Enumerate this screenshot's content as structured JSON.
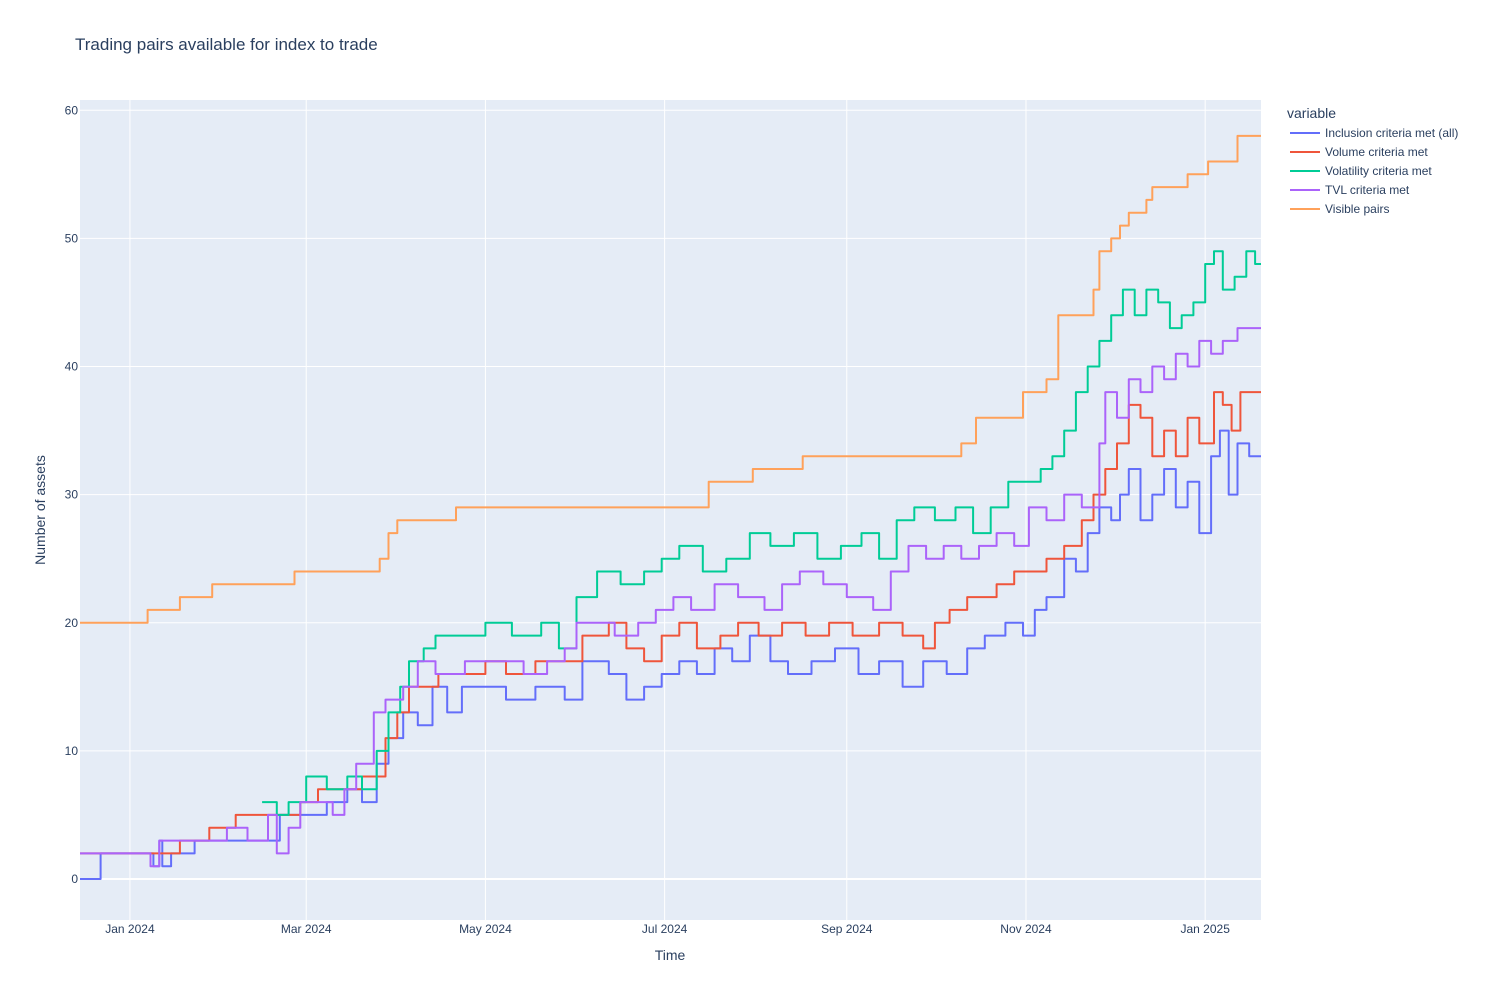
{
  "chart_data": {
    "type": "line",
    "line_shape": "step",
    "title": "Trading pairs available for index to trade",
    "xlabel": "Time",
    "ylabel": "Number of assets",
    "xlim": [
      "2023-12-15",
      "2025-01-20"
    ],
    "ylim": [
      -3.2,
      60.8
    ],
    "y_ticks": [
      0,
      10,
      20,
      30,
      40,
      50,
      60
    ],
    "x_ticks": [
      {
        "date": "2024-01-01",
        "label": "Jan 2024"
      },
      {
        "date": "2024-03-01",
        "label": "Mar 2024"
      },
      {
        "date": "2024-05-01",
        "label": "May 2024"
      },
      {
        "date": "2024-07-01",
        "label": "Jul 2024"
      },
      {
        "date": "2024-09-01",
        "label": "Sep 2024"
      },
      {
        "date": "2024-11-01",
        "label": "Nov 2024"
      },
      {
        "date": "2025-01-01",
        "label": "Jan 2025"
      }
    ],
    "grid": true,
    "legend": {
      "title": "variable",
      "position": "top-right-outside"
    },
    "series": [
      {
        "name": "Inclusion criteria met (all)",
        "color": "#636efa",
        "points": [
          [
            "2023-12-15",
            0
          ],
          [
            "2023-12-22",
            2
          ],
          [
            "2024-01-09",
            1
          ],
          [
            "2024-01-11",
            3
          ],
          [
            "2024-01-12",
            1
          ],
          [
            "2024-01-15",
            2
          ],
          [
            "2024-01-23",
            3
          ],
          [
            "2024-02-03",
            3
          ],
          [
            "2024-02-21",
            5
          ],
          [
            "2024-03-08",
            6
          ],
          [
            "2024-03-15",
            7
          ],
          [
            "2024-03-20",
            6
          ],
          [
            "2024-03-25",
            9
          ],
          [
            "2024-03-29",
            11
          ],
          [
            "2024-04-03",
            13
          ],
          [
            "2024-04-08",
            12
          ],
          [
            "2024-04-13",
            15
          ],
          [
            "2024-04-18",
            13
          ],
          [
            "2024-04-23",
            15
          ],
          [
            "2024-05-08",
            14
          ],
          [
            "2024-05-18",
            15
          ],
          [
            "2024-05-28",
            14
          ],
          [
            "2024-06-03",
            17
          ],
          [
            "2024-06-12",
            16
          ],
          [
            "2024-06-18",
            14
          ],
          [
            "2024-06-24",
            15
          ],
          [
            "2024-06-30",
            16
          ],
          [
            "2024-07-06",
            17
          ],
          [
            "2024-07-12",
            16
          ],
          [
            "2024-07-18",
            18
          ],
          [
            "2024-07-24",
            17
          ],
          [
            "2024-07-30",
            19
          ],
          [
            "2024-08-06",
            17
          ],
          [
            "2024-08-12",
            16
          ],
          [
            "2024-08-20",
            17
          ],
          [
            "2024-08-28",
            18
          ],
          [
            "2024-09-05",
            16
          ],
          [
            "2024-09-12",
            17
          ],
          [
            "2024-09-20",
            15
          ],
          [
            "2024-09-27",
            17
          ],
          [
            "2024-10-05",
            16
          ],
          [
            "2024-10-12",
            18
          ],
          [
            "2024-10-18",
            19
          ],
          [
            "2024-10-25",
            20
          ],
          [
            "2024-10-31",
            19
          ],
          [
            "2024-11-04",
            21
          ],
          [
            "2024-11-08",
            22
          ],
          [
            "2024-11-14",
            25
          ],
          [
            "2024-11-18",
            24
          ],
          [
            "2024-11-22",
            27
          ],
          [
            "2024-11-26",
            29
          ],
          [
            "2024-11-30",
            28
          ],
          [
            "2024-12-03",
            30
          ],
          [
            "2024-12-06",
            32
          ],
          [
            "2024-12-10",
            28
          ],
          [
            "2024-12-14",
            30
          ],
          [
            "2024-12-18",
            32
          ],
          [
            "2024-12-22",
            29
          ],
          [
            "2024-12-26",
            31
          ],
          [
            "2024-12-30",
            27
          ],
          [
            "2025-01-03",
            33
          ],
          [
            "2025-01-06",
            35
          ],
          [
            "2025-01-09",
            30
          ],
          [
            "2025-01-12",
            34
          ],
          [
            "2025-01-16",
            33
          ],
          [
            "2025-01-20",
            33
          ]
        ]
      },
      {
        "name": "Volume criteria met",
        "color": "#ef553b",
        "points": [
          [
            "2023-12-15",
            2
          ],
          [
            "2024-01-18",
            3
          ],
          [
            "2024-01-28",
            4
          ],
          [
            "2024-02-06",
            5
          ],
          [
            "2024-02-28",
            6
          ],
          [
            "2024-03-05",
            7
          ],
          [
            "2024-03-20",
            8
          ],
          [
            "2024-03-28",
            11
          ],
          [
            "2024-04-01",
            13
          ],
          [
            "2024-04-05",
            15
          ],
          [
            "2024-04-15",
            16
          ],
          [
            "2024-05-01",
            17
          ],
          [
            "2024-05-08",
            16
          ],
          [
            "2024-05-18",
            17
          ],
          [
            "2024-06-03",
            19
          ],
          [
            "2024-06-12",
            20
          ],
          [
            "2024-06-18",
            18
          ],
          [
            "2024-06-24",
            17
          ],
          [
            "2024-06-30",
            19
          ],
          [
            "2024-07-06",
            20
          ],
          [
            "2024-07-12",
            18
          ],
          [
            "2024-07-20",
            19
          ],
          [
            "2024-07-26",
            20
          ],
          [
            "2024-08-02",
            19
          ],
          [
            "2024-08-10",
            20
          ],
          [
            "2024-08-18",
            19
          ],
          [
            "2024-08-26",
            20
          ],
          [
            "2024-09-03",
            19
          ],
          [
            "2024-09-12",
            20
          ],
          [
            "2024-09-20",
            19
          ],
          [
            "2024-09-27",
            18
          ],
          [
            "2024-10-01",
            20
          ],
          [
            "2024-10-06",
            21
          ],
          [
            "2024-10-12",
            22
          ],
          [
            "2024-10-22",
            23
          ],
          [
            "2024-10-28",
            24
          ],
          [
            "2024-11-02",
            24
          ],
          [
            "2024-11-08",
            25
          ],
          [
            "2024-11-14",
            26
          ],
          [
            "2024-11-20",
            28
          ],
          [
            "2024-11-24",
            30
          ],
          [
            "2024-11-28",
            32
          ],
          [
            "2024-12-02",
            34
          ],
          [
            "2024-12-06",
            37
          ],
          [
            "2024-12-10",
            36
          ],
          [
            "2024-12-14",
            33
          ],
          [
            "2024-12-18",
            35
          ],
          [
            "2024-12-22",
            33
          ],
          [
            "2024-12-26",
            36
          ],
          [
            "2024-12-30",
            34
          ],
          [
            "2025-01-04",
            38
          ],
          [
            "2025-01-07",
            37
          ],
          [
            "2025-01-10",
            35
          ],
          [
            "2025-01-13",
            38
          ],
          [
            "2025-01-20",
            38
          ]
        ]
      },
      {
        "name": "Volatility criteria met",
        "color": "#00cc96",
        "points": [
          [
            "2024-02-15",
            6
          ],
          [
            "2024-02-20",
            5
          ],
          [
            "2024-02-24",
            6
          ],
          [
            "2024-03-01",
            8
          ],
          [
            "2024-03-08",
            7
          ],
          [
            "2024-03-15",
            8
          ],
          [
            "2024-03-20",
            7
          ],
          [
            "2024-03-25",
            10
          ],
          [
            "2024-03-29",
            13
          ],
          [
            "2024-04-02",
            15
          ],
          [
            "2024-04-05",
            17
          ],
          [
            "2024-04-10",
            18
          ],
          [
            "2024-04-14",
            19
          ],
          [
            "2024-04-28",
            19
          ],
          [
            "2024-05-01",
            20
          ],
          [
            "2024-05-10",
            19
          ],
          [
            "2024-05-20",
            20
          ],
          [
            "2024-05-26",
            18
          ],
          [
            "2024-06-01",
            22
          ],
          [
            "2024-06-08",
            24
          ],
          [
            "2024-06-16",
            23
          ],
          [
            "2024-06-24",
            24
          ],
          [
            "2024-06-30",
            25
          ],
          [
            "2024-07-06",
            26
          ],
          [
            "2024-07-14",
            24
          ],
          [
            "2024-07-22",
            25
          ],
          [
            "2024-07-30",
            27
          ],
          [
            "2024-08-06",
            26
          ],
          [
            "2024-08-14",
            27
          ],
          [
            "2024-08-22",
            25
          ],
          [
            "2024-08-30",
            26
          ],
          [
            "2024-09-06",
            27
          ],
          [
            "2024-09-12",
            25
          ],
          [
            "2024-09-18",
            28
          ],
          [
            "2024-09-24",
            29
          ],
          [
            "2024-10-01",
            28
          ],
          [
            "2024-10-08",
            29
          ],
          [
            "2024-10-14",
            27
          ],
          [
            "2024-10-20",
            29
          ],
          [
            "2024-10-26",
            31
          ],
          [
            "2024-11-01",
            31
          ],
          [
            "2024-11-06",
            32
          ],
          [
            "2024-11-10",
            33
          ],
          [
            "2024-11-14",
            35
          ],
          [
            "2024-11-18",
            38
          ],
          [
            "2024-11-22",
            40
          ],
          [
            "2024-11-26",
            42
          ],
          [
            "2024-11-30",
            44
          ],
          [
            "2024-12-04",
            46
          ],
          [
            "2024-12-08",
            44
          ],
          [
            "2024-12-12",
            46
          ],
          [
            "2024-12-16",
            45
          ],
          [
            "2024-12-20",
            43
          ],
          [
            "2024-12-24",
            44
          ],
          [
            "2024-12-28",
            45
          ],
          [
            "2025-01-01",
            48
          ],
          [
            "2025-01-04",
            49
          ],
          [
            "2025-01-07",
            46
          ],
          [
            "2025-01-11",
            47
          ],
          [
            "2025-01-15",
            49
          ],
          [
            "2025-01-18",
            48
          ],
          [
            "2025-01-20",
            48
          ]
        ]
      },
      {
        "name": "TVL criteria met",
        "color": "#ab63fa",
        "points": [
          [
            "2023-12-15",
            2
          ],
          [
            "2024-01-08",
            1
          ],
          [
            "2024-01-11",
            3
          ],
          [
            "2024-01-15",
            3
          ],
          [
            "2024-02-03",
            4
          ],
          [
            "2024-02-10",
            3
          ],
          [
            "2024-02-17",
            5
          ],
          [
            "2024-02-20",
            2
          ],
          [
            "2024-02-24",
            4
          ],
          [
            "2024-02-28",
            6
          ],
          [
            "2024-03-10",
            5
          ],
          [
            "2024-03-14",
            7
          ],
          [
            "2024-03-18",
            9
          ],
          [
            "2024-03-24",
            13
          ],
          [
            "2024-03-28",
            14
          ],
          [
            "2024-04-03",
            15
          ],
          [
            "2024-04-08",
            17
          ],
          [
            "2024-04-14",
            16
          ],
          [
            "2024-04-24",
            17
          ],
          [
            "2024-05-14",
            16
          ],
          [
            "2024-05-22",
            17
          ],
          [
            "2024-05-28",
            18
          ],
          [
            "2024-06-01",
            20
          ],
          [
            "2024-06-14",
            19
          ],
          [
            "2024-06-22",
            20
          ],
          [
            "2024-06-28",
            21
          ],
          [
            "2024-07-04",
            22
          ],
          [
            "2024-07-10",
            21
          ],
          [
            "2024-07-18",
            23
          ],
          [
            "2024-07-26",
            22
          ],
          [
            "2024-08-04",
            21
          ],
          [
            "2024-08-10",
            23
          ],
          [
            "2024-08-16",
            24
          ],
          [
            "2024-08-24",
            23
          ],
          [
            "2024-09-01",
            22
          ],
          [
            "2024-09-10",
            21
          ],
          [
            "2024-09-16",
            24
          ],
          [
            "2024-09-22",
            26
          ],
          [
            "2024-09-28",
            25
          ],
          [
            "2024-10-04",
            26
          ],
          [
            "2024-10-10",
            25
          ],
          [
            "2024-10-16",
            26
          ],
          [
            "2024-10-22",
            27
          ],
          [
            "2024-10-28",
            26
          ],
          [
            "2024-11-02",
            29
          ],
          [
            "2024-11-08",
            28
          ],
          [
            "2024-11-14",
            30
          ],
          [
            "2024-11-20",
            29
          ],
          [
            "2024-11-26",
            34
          ],
          [
            "2024-11-28",
            38
          ],
          [
            "2024-12-02",
            36
          ],
          [
            "2024-12-06",
            39
          ],
          [
            "2024-12-10",
            38
          ],
          [
            "2024-12-14",
            40
          ],
          [
            "2024-12-18",
            39
          ],
          [
            "2024-12-22",
            41
          ],
          [
            "2024-12-26",
            40
          ],
          [
            "2024-12-30",
            42
          ],
          [
            "2025-01-03",
            41
          ],
          [
            "2025-01-07",
            42
          ],
          [
            "2025-01-12",
            43
          ],
          [
            "2025-01-20",
            43
          ]
        ]
      },
      {
        "name": "Visible pairs",
        "color": "#ffa15a",
        "points": [
          [
            "2023-12-15",
            20
          ],
          [
            "2024-01-07",
            21
          ],
          [
            "2024-01-18",
            22
          ],
          [
            "2024-01-29",
            23
          ],
          [
            "2024-02-26",
            24
          ],
          [
            "2024-03-26",
            25
          ],
          [
            "2024-03-29",
            27
          ],
          [
            "2024-04-01",
            28
          ],
          [
            "2024-04-21",
            29
          ],
          [
            "2024-07-16",
            31
          ],
          [
            "2024-07-31",
            32
          ],
          [
            "2024-08-17",
            33
          ],
          [
            "2024-10-10",
            34
          ],
          [
            "2024-10-15",
            36
          ],
          [
            "2024-10-31",
            38
          ],
          [
            "2024-11-08",
            39
          ],
          [
            "2024-11-12",
            44
          ],
          [
            "2024-11-24",
            46
          ],
          [
            "2024-11-26",
            49
          ],
          [
            "2024-11-30",
            50
          ],
          [
            "2024-12-03",
            51
          ],
          [
            "2024-12-06",
            52
          ],
          [
            "2024-12-12",
            53
          ],
          [
            "2024-12-14",
            54
          ],
          [
            "2024-12-26",
            55
          ],
          [
            "2025-01-02",
            56
          ],
          [
            "2025-01-12",
            58
          ],
          [
            "2025-01-20",
            58
          ]
        ]
      }
    ]
  }
}
